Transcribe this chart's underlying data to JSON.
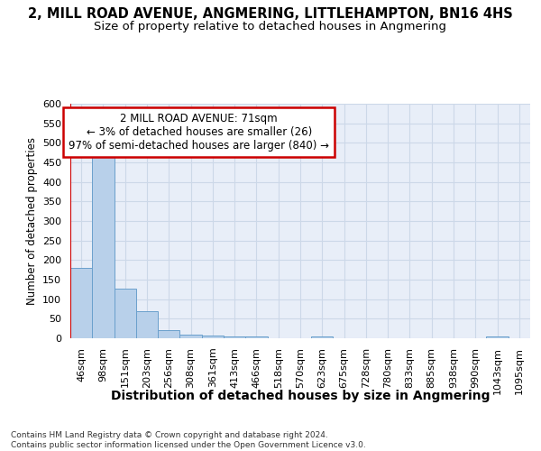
{
  "title": "2, MILL ROAD AVENUE, ANGMERING, LITTLEHAMPTON, BN16 4HS",
  "subtitle": "Size of property relative to detached houses in Angmering",
  "xlabel": "Distribution of detached houses by size in Angmering",
  "ylabel": "Number of detached properties",
  "bar_values": [
    180,
    468,
    126,
    70,
    20,
    10,
    7,
    5,
    5,
    0,
    0,
    5,
    0,
    0,
    0,
    0,
    0,
    0,
    0,
    5,
    0
  ],
  "bin_labels": [
    "46sqm",
    "98sqm",
    "151sqm",
    "203sqm",
    "256sqm",
    "308sqm",
    "361sqm",
    "413sqm",
    "466sqm",
    "518sqm",
    "570sqm",
    "623sqm",
    "675sqm",
    "728sqm",
    "780sqm",
    "833sqm",
    "885sqm",
    "938sqm",
    "990sqm",
    "1043sqm",
    "1095sqm"
  ],
  "bar_color": "#b8d0ea",
  "bar_edge_color": "#6aa0cc",
  "annotation_text": "2 MILL ROAD AVENUE: 71sqm\n← 3% of detached houses are smaller (26)\n97% of semi-detached houses are larger (840) →",
  "annotation_box_color": "#ffffff",
  "annotation_box_edge_color": "#cc0000",
  "red_line_color": "#cc0000",
  "ylim": [
    0,
    600
  ],
  "yticks": [
    0,
    50,
    100,
    150,
    200,
    250,
    300,
    350,
    400,
    450,
    500,
    550,
    600
  ],
  "grid_color": "#ccd8e8",
  "background_color": "#e8eef8",
  "footer_text": "Contains HM Land Registry data © Crown copyright and database right 2024.\nContains public sector information licensed under the Open Government Licence v3.0.",
  "title_fontsize": 10.5,
  "subtitle_fontsize": 9.5,
  "xlabel_fontsize": 10,
  "ylabel_fontsize": 8.5,
  "tick_fontsize": 8,
  "annot_fontsize": 8.5
}
